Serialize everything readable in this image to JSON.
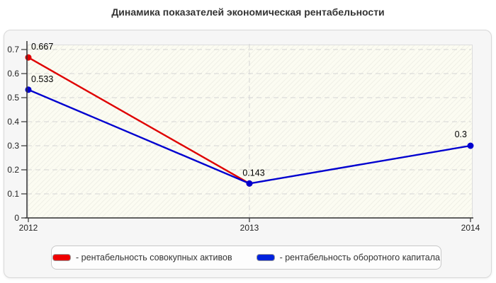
{
  "title": "Динамика показателей экономическая рентабельности",
  "chart_data": {
    "type": "line",
    "x": [
      "2012",
      "2013",
      "2014"
    ],
    "y_ticks": [
      "0",
      "0.1",
      "0.2",
      "0.3",
      "0.4",
      "0.5",
      "0.6",
      "0.7"
    ],
    "ylim": [
      0,
      0.7
    ],
    "grid": "dashed",
    "legend_position": "bottom",
    "series": [
      {
        "name": "рентабельность совокупных активов",
        "color": "#df0000",
        "values": [
          0.667,
          0.143,
          null
        ],
        "point_labels": [
          "0.667",
          "",
          ""
        ]
      },
      {
        "name": "рентабельность оборотного капитала",
        "color": "#0000cf",
        "values": [
          0.533,
          0.143,
          0.3
        ],
        "point_labels": [
          "0.533",
          "0.143",
          "0.3"
        ]
      }
    ]
  },
  "legend": {
    "items": [
      {
        "label": "- рентабельность совокупных активов",
        "color": "#ee0000"
      },
      {
        "label": "- рентабельность оборотного капитала",
        "color": "#0022dd"
      }
    ]
  },
  "colors": {
    "grid": "#d4d4d4",
    "axis": "#333333",
    "tick_text": "#222222",
    "point_label": "#000000",
    "plot_bg": "#fcfcf2",
    "panel_bg": "#f6f6f6"
  }
}
